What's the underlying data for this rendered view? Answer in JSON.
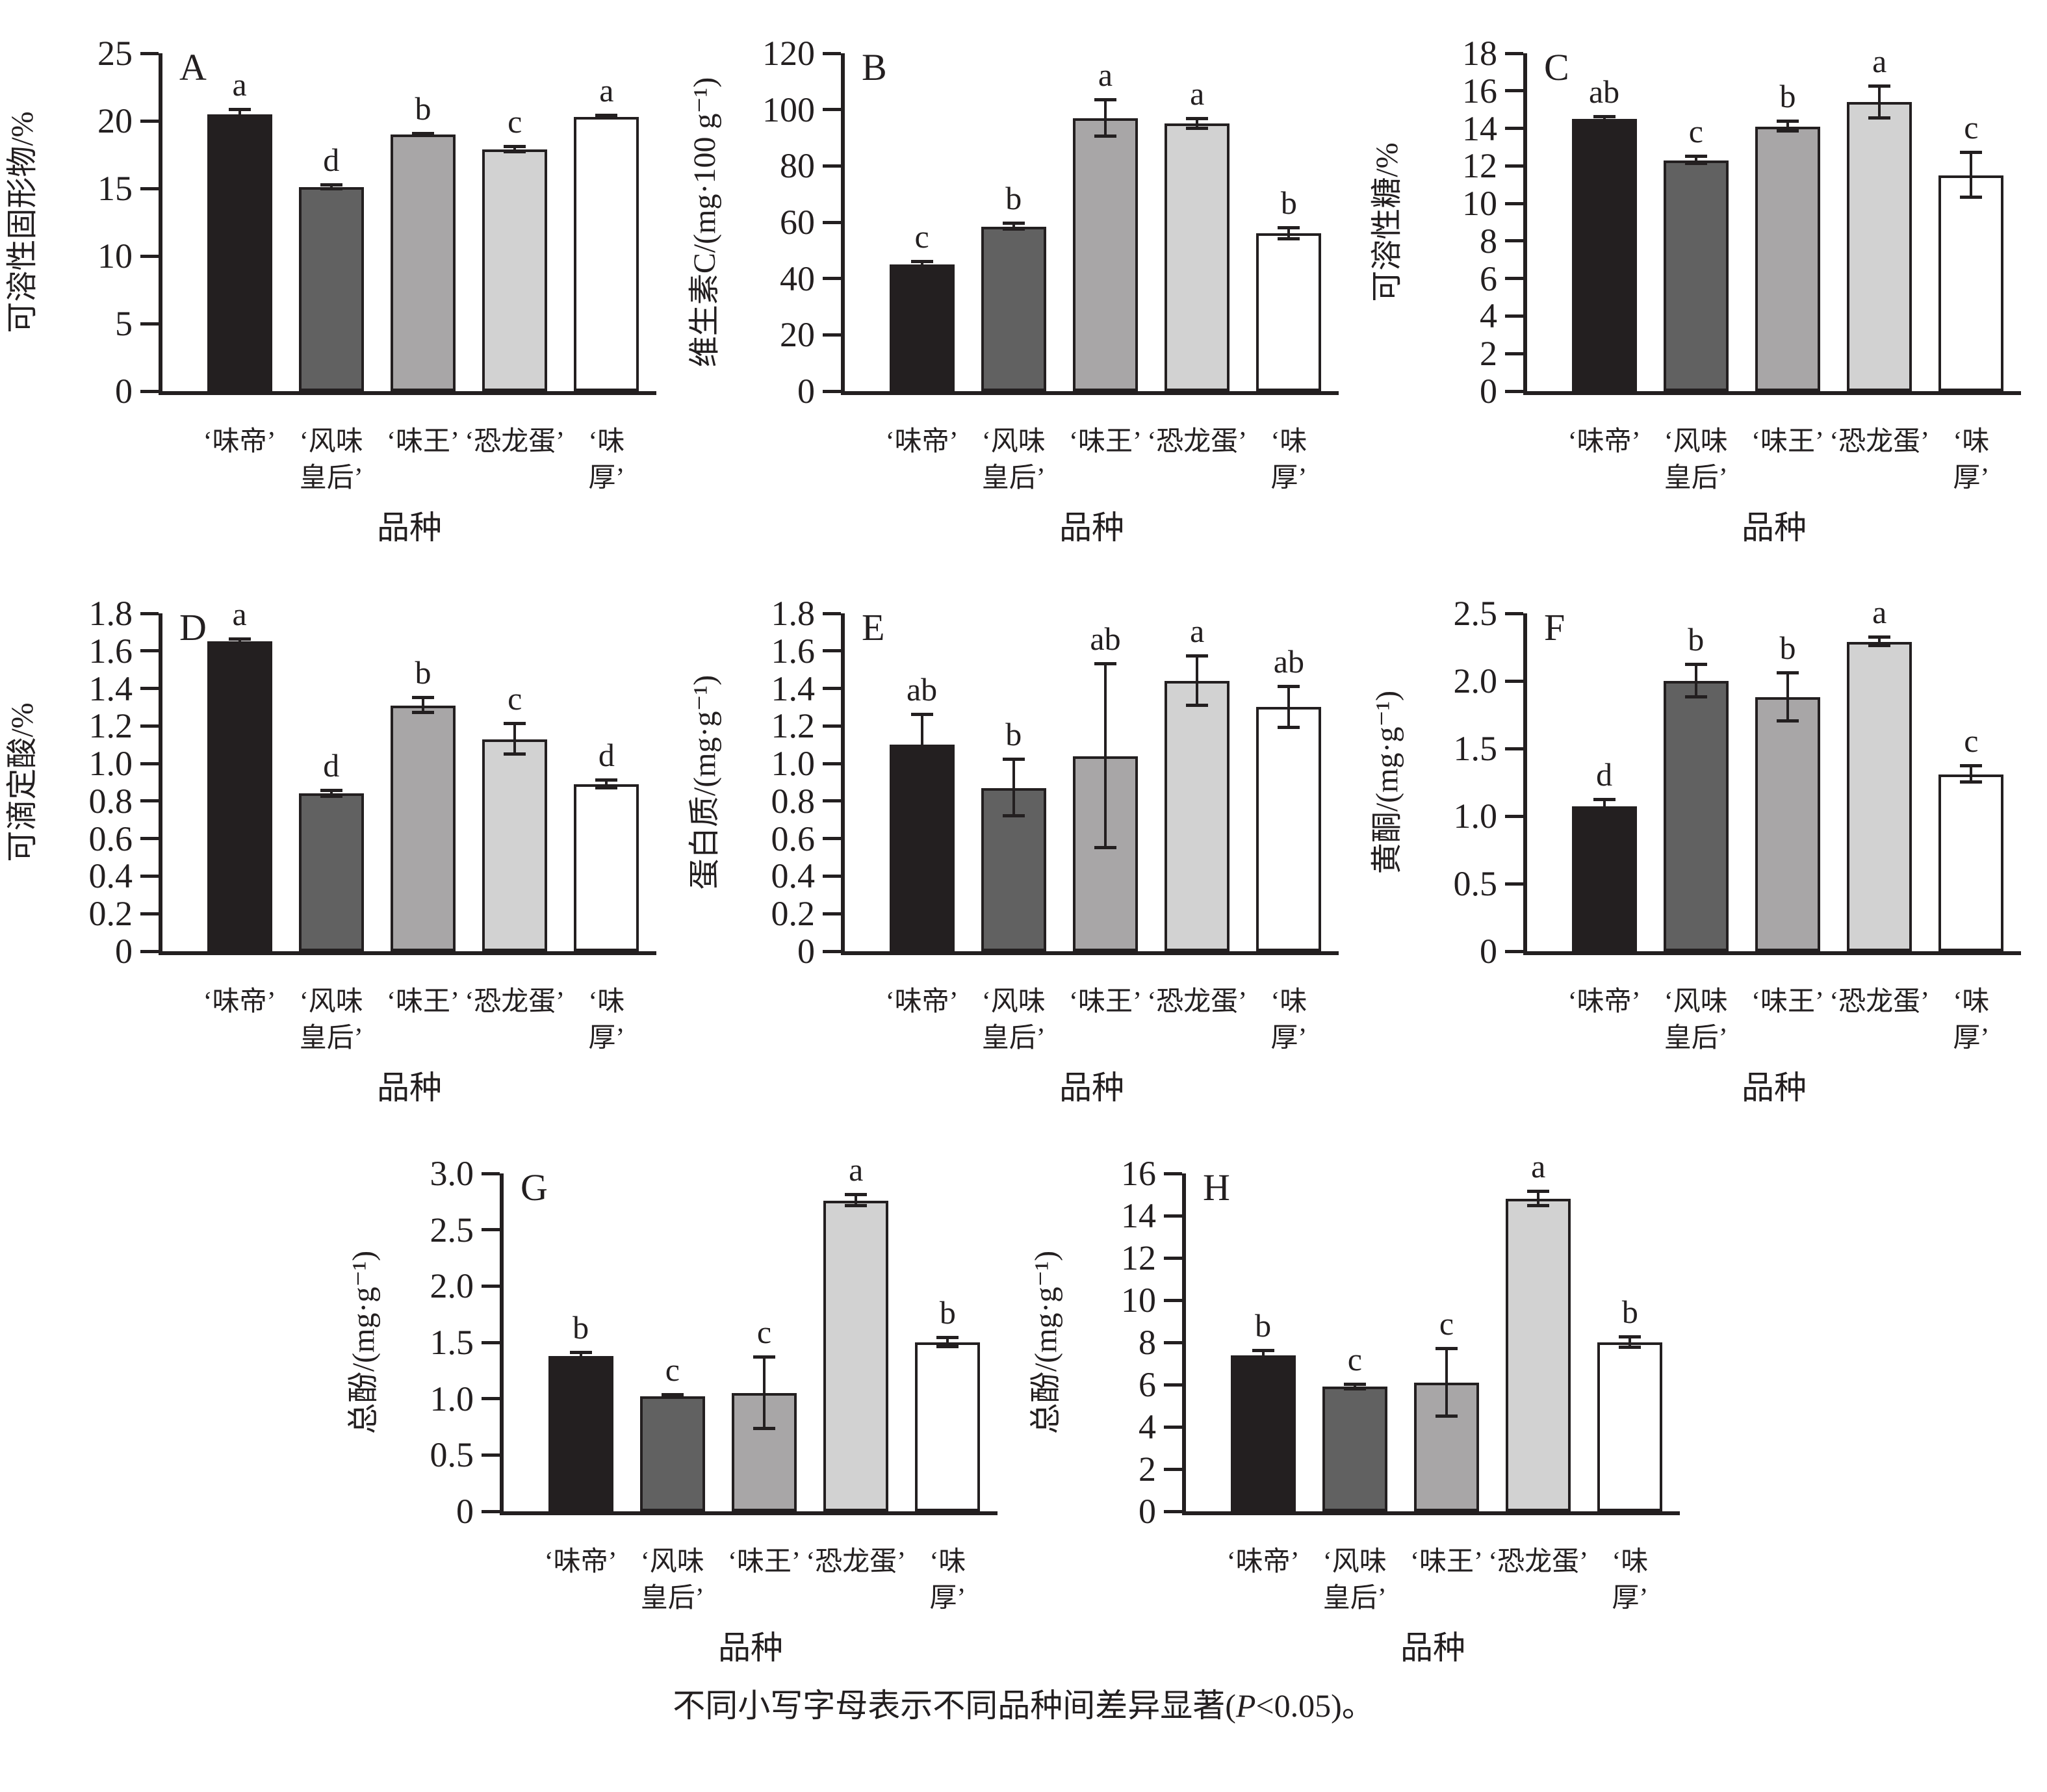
{
  "figure": {
    "caption": {
      "prefix": "不同小写字母表示不同品种间差异显著(",
      "p_symbol": "P",
      "suffix": "<0.05)。"
    },
    "colors": {
      "bar_fills": [
        "#231f20",
        "#616161",
        "#a8a6a7",
        "#d2d2d2",
        "#ffffff"
      ],
      "bar_border": "#231f20",
      "axis": "#231f20"
    },
    "x_axis_label": "品种",
    "cultivars": [
      "‘味帝’",
      "‘风味皇后’",
      "‘味王’",
      "‘恐龙蛋’",
      "‘味厚’"
    ]
  },
  "chart_data": [
    {
      "type": "bar",
      "panel": "A",
      "row": 0,
      "title": "",
      "xlabel": "品种",
      "ylabel": "可溶性固形物/%",
      "ylim": [
        0,
        25
      ],
      "grid": false,
      "legend": "none",
      "ytick_values": [
        0,
        5,
        10,
        15,
        20,
        25
      ],
      "ytick_labels": [
        "0",
        "5",
        "10",
        "15",
        "20",
        "25"
      ],
      "categories": [
        "‘味帝’",
        "‘风味\n皇后’",
        "‘味王’",
        "‘恐龙蛋’",
        "‘味厚’"
      ],
      "values": [
        20.5,
        15.1,
        19.0,
        17.9,
        20.3
      ],
      "errors": [
        0.3,
        0.15,
        0.05,
        0.2,
        0.1
      ],
      "sig_letters": [
        "a",
        "d",
        "b",
        "c",
        "a"
      ]
    },
    {
      "type": "bar",
      "panel": "B",
      "row": 0,
      "title": "",
      "xlabel": "品种",
      "ylabel": "维生素C/(mg·100 g⁻¹)",
      "ylim": [
        0,
        120
      ],
      "grid": false,
      "legend": "none",
      "ytick_values": [
        0,
        20,
        40,
        60,
        80,
        100,
        120
      ],
      "ytick_labels": [
        "0",
        "20",
        "40",
        "60",
        "80",
        "100",
        "120"
      ],
      "categories": [
        "‘味帝’",
        "‘风味\n皇后’",
        "‘味王’",
        "‘恐龙蛋’",
        "‘味厚’"
      ],
      "values": [
        45,
        58.5,
        97,
        95,
        56
      ],
      "errors": [
        1,
        1,
        6.5,
        1.8,
        2
      ],
      "sig_letters": [
        "c",
        "b",
        "a",
        "a",
        "b"
      ]
    },
    {
      "type": "bar",
      "panel": "C",
      "row": 0,
      "title": "",
      "xlabel": "品种",
      "ylabel": "可溶性糖/%",
      "ylim": [
        0,
        18
      ],
      "grid": false,
      "legend": "none",
      "ytick_values": [
        0,
        2,
        4,
        6,
        8,
        10,
        12,
        14,
        16,
        18
      ],
      "ytick_labels": [
        "0",
        "2",
        "4",
        "6",
        "8",
        "10",
        "12",
        "14",
        "16",
        "18"
      ],
      "categories": [
        "‘味帝’",
        "‘风味\n皇后’",
        "‘味王’",
        "‘恐龙蛋’",
        "‘味厚’"
      ],
      "values": [
        14.5,
        12.3,
        14.1,
        15.4,
        11.5
      ],
      "errors": [
        0.1,
        0.2,
        0.25,
        0.85,
        1.2
      ],
      "sig_letters": [
        "ab",
        "c",
        "b",
        "a",
        "c"
      ]
    },
    {
      "type": "bar",
      "panel": "D",
      "row": 1,
      "title": "",
      "xlabel": "品种",
      "ylabel": "可滴定酸/%",
      "ylim": [
        0,
        1.8
      ],
      "grid": false,
      "legend": "none",
      "ytick_values": [
        0,
        0.2,
        0.4,
        0.6,
        0.8,
        1.0,
        1.2,
        1.4,
        1.6,
        1.8
      ],
      "ytick_labels": [
        "0",
        "0.2",
        "0.4",
        "0.6",
        "0.8",
        "1.0",
        "1.2",
        "1.4",
        "1.6",
        "1.8"
      ],
      "categories": [
        "‘味帝’",
        "‘风味\n皇后’",
        "‘味王’",
        "‘恐龙蛋’",
        "‘味厚’"
      ],
      "values": [
        1.65,
        0.84,
        1.31,
        1.13,
        0.89
      ],
      "errors": [
        0.01,
        0.015,
        0.04,
        0.08,
        0.02
      ],
      "sig_letters": [
        "a",
        "d",
        "b",
        "c",
        "d"
      ]
    },
    {
      "type": "bar",
      "panel": "E",
      "row": 1,
      "title": "",
      "xlabel": "品种",
      "ylabel": "蛋白质/(mg·g⁻¹)",
      "ylim": [
        0,
        1.8
      ],
      "grid": false,
      "legend": "none",
      "ytick_values": [
        0,
        0.2,
        0.4,
        0.6,
        0.8,
        1.0,
        1.2,
        1.4,
        1.6,
        1.8
      ],
      "ytick_labels": [
        "0",
        "0.2",
        "0.4",
        "0.6",
        "0.8",
        "1.0",
        "1.2",
        "1.4",
        "1.6",
        "1.8"
      ],
      "categories": [
        "‘味帝’",
        "‘风味\n皇后’",
        "‘味王’",
        "‘恐龙蛋’",
        "‘味厚’"
      ],
      "values": [
        1.1,
        0.87,
        1.04,
        1.44,
        1.3
      ],
      "errors": [
        0.16,
        0.15,
        0.49,
        0.13,
        0.11
      ],
      "sig_letters": [
        "ab",
        "b",
        "ab",
        "a",
        "ab"
      ]
    },
    {
      "type": "bar",
      "panel": "F",
      "row": 1,
      "title": "",
      "xlabel": "品种",
      "ylabel": "黄酮/(mg·g⁻¹)",
      "ylim": [
        0,
        2.5
      ],
      "grid": false,
      "legend": "none",
      "ytick_values": [
        0,
        0.5,
        1.0,
        1.5,
        2.0,
        2.5
      ],
      "ytick_labels": [
        "0",
        "0.5",
        "1.0",
        "1.5",
        "2.0",
        "2.5"
      ],
      "categories": [
        "‘味帝’",
        "‘风味\n皇后’",
        "‘味王’",
        "‘恐龙蛋’",
        "‘味厚’"
      ],
      "values": [
        1.07,
        2.0,
        1.88,
        2.29,
        1.31
      ],
      "errors": [
        0.05,
        0.12,
        0.18,
        0.03,
        0.06
      ],
      "sig_letters": [
        "d",
        "b",
        "b",
        "a",
        "c"
      ]
    },
    {
      "type": "bar",
      "panel": "G",
      "row": 2,
      "title": "",
      "xlabel": "品种",
      "ylabel": "总酚/(mg·g⁻¹)",
      "ylim": [
        0,
        3.0
      ],
      "grid": false,
      "legend": "none",
      "ytick_values": [
        0,
        0.5,
        1.0,
        1.5,
        2.0,
        2.5,
        3.0
      ],
      "ytick_labels": [
        "0",
        "0.5",
        "1.0",
        "1.5",
        "2.0",
        "2.5",
        "3.0"
      ],
      "categories": [
        "‘味帝’",
        "‘风味\n皇后’",
        "‘味王’",
        "‘恐龙蛋’",
        "‘味厚’"
      ],
      "values": [
        1.38,
        1.02,
        1.05,
        2.76,
        1.5
      ],
      "errors": [
        0.03,
        0.01,
        0.32,
        0.05,
        0.04
      ],
      "sig_letters": [
        "b",
        "c",
        "c",
        "a",
        "b"
      ]
    },
    {
      "type": "bar",
      "panel": "H",
      "row": 2,
      "title": "",
      "xlabel": "品种",
      "ylabel": "总酚/(mg·g⁻¹)",
      "ylim": [
        0,
        16
      ],
      "grid": false,
      "legend": "none",
      "ytick_values": [
        0,
        2,
        4,
        6,
        8,
        10,
        12,
        14,
        16
      ],
      "ytick_labels": [
        "0",
        "2",
        "4",
        "6",
        "8",
        "10",
        "12",
        "14",
        "16"
      ],
      "categories": [
        "‘味帝’",
        "‘风味\n皇后’",
        "‘味王’",
        "‘恐龙蛋’",
        "‘味厚’"
      ],
      "values": [
        7.4,
        5.9,
        6.1,
        14.8,
        8.0
      ],
      "errors": [
        0.2,
        0.1,
        1.6,
        0.35,
        0.25
      ],
      "sig_letters": [
        "b",
        "c",
        "c",
        "a",
        "b"
      ]
    }
  ]
}
